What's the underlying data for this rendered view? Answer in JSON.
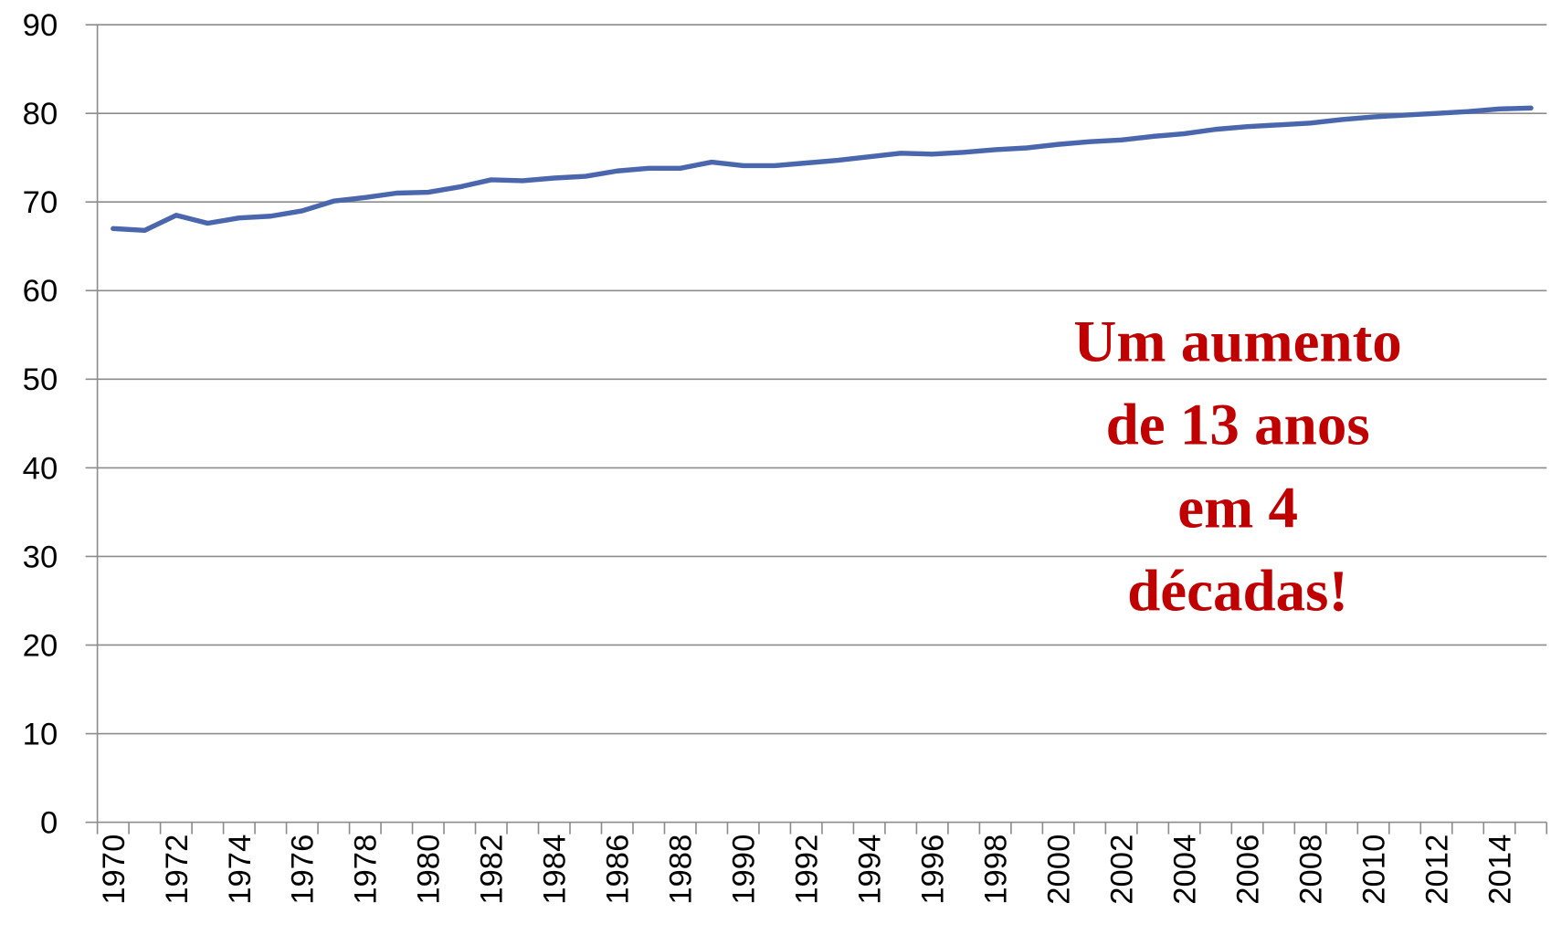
{
  "chart_data": {
    "type": "line",
    "categories": [
      "1970",
      null,
      "1972",
      null,
      "1974",
      null,
      "1976",
      null,
      "1978",
      null,
      "1980",
      null,
      "1982",
      null,
      "1984",
      null,
      "1986",
      null,
      "1988",
      null,
      "1990",
      null,
      "1992",
      null,
      "1994",
      null,
      "1996",
      null,
      "1998",
      null,
      "2000",
      null,
      "2002",
      null,
      "2004",
      null,
      "2006",
      null,
      "2008",
      null,
      "2010",
      null,
      "2012",
      null,
      "2014",
      null
    ],
    "series": [
      {
        "color": "#4a66ac",
        "values": [
          67.0,
          66.8,
          68.5,
          67.6,
          68.2,
          68.4,
          69.0,
          70.1,
          70.5,
          71.0,
          71.1,
          71.7,
          72.5,
          72.4,
          72.7,
          72.9,
          73.5,
          73.8,
          73.8,
          74.5,
          74.1,
          74.1,
          74.4,
          74.7,
          75.1,
          75.5,
          75.4,
          75.6,
          75.9,
          76.1,
          76.5,
          76.8,
          77.0,
          77.4,
          77.7,
          78.2,
          78.5,
          78.7,
          78.9,
          79.3,
          79.6,
          79.8,
          80.0,
          80.2,
          80.5,
          80.6
        ]
      }
    ],
    "ylim": [
      0,
      90
    ],
    "yticks": [
      0,
      10,
      20,
      30,
      40,
      50,
      60,
      70,
      80,
      90
    ],
    "grid": true,
    "annotation": [
      "Um aumento",
      "de 13 anos",
      "em  4",
      "décadas!"
    ]
  }
}
